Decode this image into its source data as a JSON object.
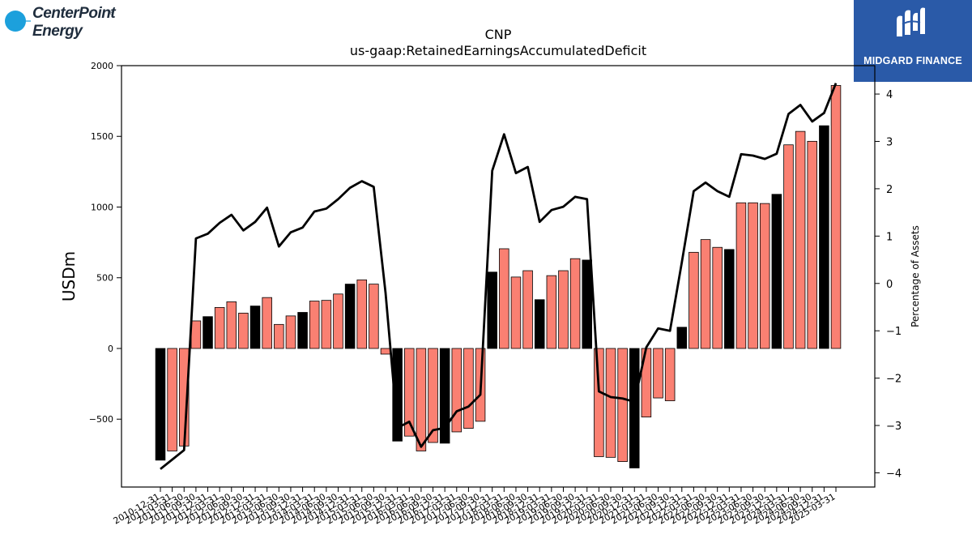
{
  "logos": {
    "left": {
      "line1": "CenterPoint",
      "line2": "Energy",
      "mark": "®",
      "color": "#1ca0dc"
    },
    "right": {
      "name": "MIDGARD FINANCE",
      "color": "#2a5aa8"
    }
  },
  "chart_data": {
    "type": "bar",
    "title": "CNP",
    "subtitle": "us-gaap:RetainedEarningsAccumulatedDeficit",
    "ylabel": "USDm",
    "y2label": "Percentage of Assets",
    "ylim": [
      -980,
      2000
    ],
    "y2lim": [
      -4.3,
      4.6
    ],
    "yticks": [
      -500,
      0,
      500,
      1000,
      1500,
      2000
    ],
    "y2ticks": [
      -4,
      -3,
      -2,
      -1,
      0,
      1,
      2,
      3,
      4
    ],
    "categories": [
      "2010-12-31",
      "2011-03-31",
      "2011-06-30",
      "2011-09-30",
      "2011-12-31",
      "2012-03-31",
      "2012-06-30",
      "2012-09-30",
      "2012-12-31",
      "2013-03-31",
      "2013-06-30",
      "2013-09-30",
      "2013-12-31",
      "2014-03-31",
      "2014-06-30",
      "2014-09-30",
      "2014-12-31",
      "2015-03-31",
      "2015-06-30",
      "2015-09-30",
      "2015-12-31",
      "2016-03-31",
      "2016-06-30",
      "2016-09-30",
      "2016-12-31",
      "2017-03-31",
      "2017-06-30",
      "2017-09-30",
      "2017-12-31",
      "2018-03-31",
      "2018-06-30",
      "2018-09-30",
      "2018-12-31",
      "2019-03-31",
      "2019-06-30",
      "2019-09-30",
      "2019-12-31",
      "2020-03-31",
      "2020-06-30",
      "2020-09-30",
      "2020-12-31",
      "2021-03-31",
      "2021-06-30",
      "2021-09-30",
      "2021-12-31",
      "2022-03-31",
      "2022-06-30",
      "2022-09-30",
      "2022-12-31",
      "2023-03-31",
      "2023-06-30",
      "2023-09-30",
      "2023-12-31",
      "2024-03-31",
      "2024-06-30",
      "2024-09-30",
      "2024-12-31",
      "2025-03-31"
    ],
    "series": [
      {
        "kind": "bar",
        "colors": {
          "year_end": "#000000",
          "quarter": "#fa8072"
        },
        "values": [
          -790,
          -725,
          -690,
          195,
          225,
          290,
          330,
          250,
          300,
          360,
          170,
          230,
          255,
          335,
          340,
          385,
          455,
          485,
          455,
          -40,
          -655,
          -620,
          -725,
          -665,
          -670,
          -590,
          -565,
          -515,
          540,
          705,
          505,
          550,
          345,
          515,
          550,
          635,
          625,
          -765,
          -770,
          -800,
          -845,
          -485,
          -350,
          -370,
          150,
          680,
          770,
          715,
          700,
          1030,
          1030,
          1025,
          1090,
          1440,
          1535,
          1465,
          1575,
          1860
        ]
      },
      {
        "kind": "line",
        "axis": "right",
        "color": "#000000",
        "values": [
          -3.92,
          -3.72,
          -3.52,
          0.95,
          1.05,
          1.28,
          1.45,
          1.12,
          1.3,
          1.6,
          0.78,
          1.08,
          1.18,
          1.52,
          1.58,
          1.78,
          2.02,
          2.16,
          2.04,
          -0.2,
          -3.05,
          -2.92,
          -3.45,
          -3.1,
          -3.05,
          -2.7,
          -2.6,
          -2.35,
          2.38,
          3.15,
          2.33,
          2.46,
          1.3,
          1.55,
          1.62,
          1.83,
          1.78,
          -2.28,
          -2.4,
          -2.43,
          -2.5,
          -1.35,
          -0.95,
          -1.0,
          0.45,
          1.95,
          2.13,
          1.95,
          1.83,
          2.73,
          2.7,
          2.63,
          2.74,
          3.58,
          3.77,
          3.42,
          3.6,
          4.23
        ]
      }
    ]
  }
}
